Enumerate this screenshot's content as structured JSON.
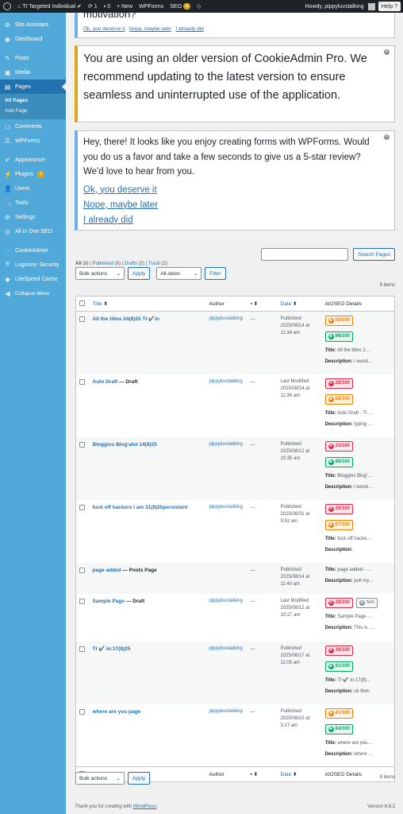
{
  "adminbar": {
    "site_name": "TI Targeted Individual",
    "updates": "1",
    "comments": "0",
    "new": "+ New",
    "wpforms": "WPForms",
    "seo": "SEO",
    "seo_badge": "3",
    "howdy": "Howdy, pippyluvstalking",
    "help": "Help"
  },
  "sidebar": {
    "items": [
      {
        "label": "Site Assistant",
        "icon": "assistant-icon"
      },
      {
        "label": "Dashboard",
        "icon": "dashboard-icon"
      },
      {
        "label": "Posts",
        "icon": "pin-icon"
      },
      {
        "label": "Media",
        "icon": "media-icon"
      },
      {
        "label": "Pages",
        "icon": "pages-icon"
      },
      {
        "label": "Comments",
        "icon": "comments-icon"
      },
      {
        "label": "WPForms",
        "icon": "forms-icon"
      },
      {
        "label": "Appearance",
        "icon": "brush-icon"
      },
      {
        "label": "Plugins",
        "icon": "plugin-icon",
        "badge": "1"
      },
      {
        "label": "Users",
        "icon": "users-icon"
      },
      {
        "label": "Tools",
        "icon": "wrench-icon"
      },
      {
        "label": "Settings",
        "icon": "settings-icon"
      },
      {
        "label": "All in One SEO",
        "icon": "seo-icon"
      },
      {
        "label": "CookieAdmin",
        "icon": "cookie-icon"
      },
      {
        "label": "Loginizer Security",
        "icon": "shield-icon"
      },
      {
        "label": "LiteSpeed Cache",
        "icon": "diamond-icon"
      },
      {
        "label": "Collapse Menu",
        "icon": "collapse-icon"
      }
    ],
    "submenu": {
      "all_pages": "All Pages",
      "add_page": "Add Page"
    }
  },
  "notices": {
    "partial_question": "motivation?",
    "partial_links": [
      "Ok, you deserve it",
      "Nope, maybe later",
      "I already did"
    ],
    "cookieadmin": "You are using an older version of CookieAdmin Pro. We recommend updating to the latest version to ensure seamless and uninterrupted use of the application.",
    "wpforms_text": "Hey, there! It looks like you enjoy creating forms with WPForms. Would you do us a favor and take a few seconds to give us a 5-star review? We'd love to hear from you.",
    "wpforms_links": [
      "Ok, you deserve it",
      "Nope, maybe later",
      "I already did"
    ]
  },
  "filters": {
    "all": "All",
    "all_count": "(8)",
    "published": "Published",
    "published_count": "(6)",
    "drafts": "Drafts",
    "drafts_count": "(2)",
    "trash": "Trash",
    "trash_count": "(2)",
    "search_button": "Search Pages",
    "bulk_actions": "Bulk actions",
    "apply": "Apply",
    "all_dates": "All dates",
    "filter": "Filter",
    "items": "8 items"
  },
  "columns": {
    "title": "Title",
    "author": "Author",
    "date": "Date",
    "aioseo": "AIOSEO Details"
  },
  "rows": [
    {
      "title": "All the titles 24(8)25 TI ✔️in",
      "state": "",
      "author": "pippyluvstalking",
      "comments": "—",
      "date_status": "Published",
      "date": "2025/08/14 at 11:34 am",
      "scores": [
        {
          "value": "50/100",
          "level": "orange"
        },
        {
          "value": "86/100",
          "level": "green"
        }
      ],
      "aio_title": "All the titles 2…",
      "aio_desc": "I wond…"
    },
    {
      "title": "Auto Draft",
      "state": " — Draft",
      "author": "pippyluvstalking",
      "comments": "—",
      "date_status": "Last Modified",
      "date": "2025/08/14 at 11:36 am",
      "scores": [
        {
          "value": "28/100",
          "level": "red"
        },
        {
          "value": "58/100",
          "level": "orange"
        }
      ],
      "aio_title": "Auto Draft - TI …",
      "aio_desc": "typing …"
    },
    {
      "title": "Bloggins Blog'alot 14(8)25",
      "state": "",
      "author": "pippyluvstalking",
      "comments": "—",
      "date_status": "Published",
      "date": "2025/08/12 at 10:35 am",
      "scores": [
        {
          "value": "33/100",
          "level": "red"
        },
        {
          "value": "80/100",
          "level": "green"
        }
      ],
      "aio_title": "Bloggins Blog'…",
      "aio_desc": "I wond…"
    },
    {
      "title": "fuck off hackers I am 31(8)25persistent",
      "state": "",
      "author": "pippyluvstalking",
      "comments": "—",
      "date_status": "Published",
      "date": "2025/08/31 at 9:52 am",
      "scores": [
        {
          "value": "39/100",
          "level": "red"
        },
        {
          "value": "67/100",
          "level": "orange"
        }
      ],
      "aio_title": "fuck off hacke…",
      "aio_desc": ""
    },
    {
      "title": "page added",
      "state": " — Posts Page",
      "author": "",
      "comments": "—",
      "date_status": "Published",
      "date": "2025/08/14 at 11:40 am",
      "scores": [],
      "aio_title": "page added - …",
      "aio_desc": "pull my…"
    },
    {
      "title": "Sample Page",
      "state": " — Draft",
      "author": "pippyluvstalking",
      "comments": "—",
      "date_status": "Last Modified",
      "date": "2025/08/12 at 10:27 am",
      "scores": [
        {
          "value": "28/100",
          "level": "red"
        },
        {
          "value": "N/A",
          "level": "na"
        }
      ],
      "aio_title": "Sample Page -…",
      "aio_desc": "This is …"
    },
    {
      "title": "TI ✔️ in:17(8)25",
      "state": "",
      "author": "pippyluvstalking",
      "comments": "—",
      "date_status": "Published",
      "date": "2025/08/17 at 11:05 am",
      "scores": [
        {
          "value": "30/100",
          "level": "red"
        },
        {
          "value": "81/100",
          "level": "green"
        }
      ],
      "aio_title": "TI ✔️ in:17(8)…",
      "aio_desc": "ok then"
    },
    {
      "title": "where are you page",
      "state": "",
      "author": "pippyluvstalking",
      "comments": "—",
      "date_status": "Published",
      "date": "2025/08/15 at 3:17 am",
      "scores": [
        {
          "value": "41/100",
          "level": "orange"
        },
        {
          "value": "84/100",
          "level": "green"
        }
      ],
      "aio_title": "where are you…",
      "aio_desc": "where …"
    }
  ],
  "aio_labels": {
    "title": "Title:",
    "desc": "Description:"
  },
  "footer": {
    "thanks": "Thank you for creating with ",
    "wp": "WordPress",
    "end": ".",
    "version": "Version 6.8.2"
  }
}
